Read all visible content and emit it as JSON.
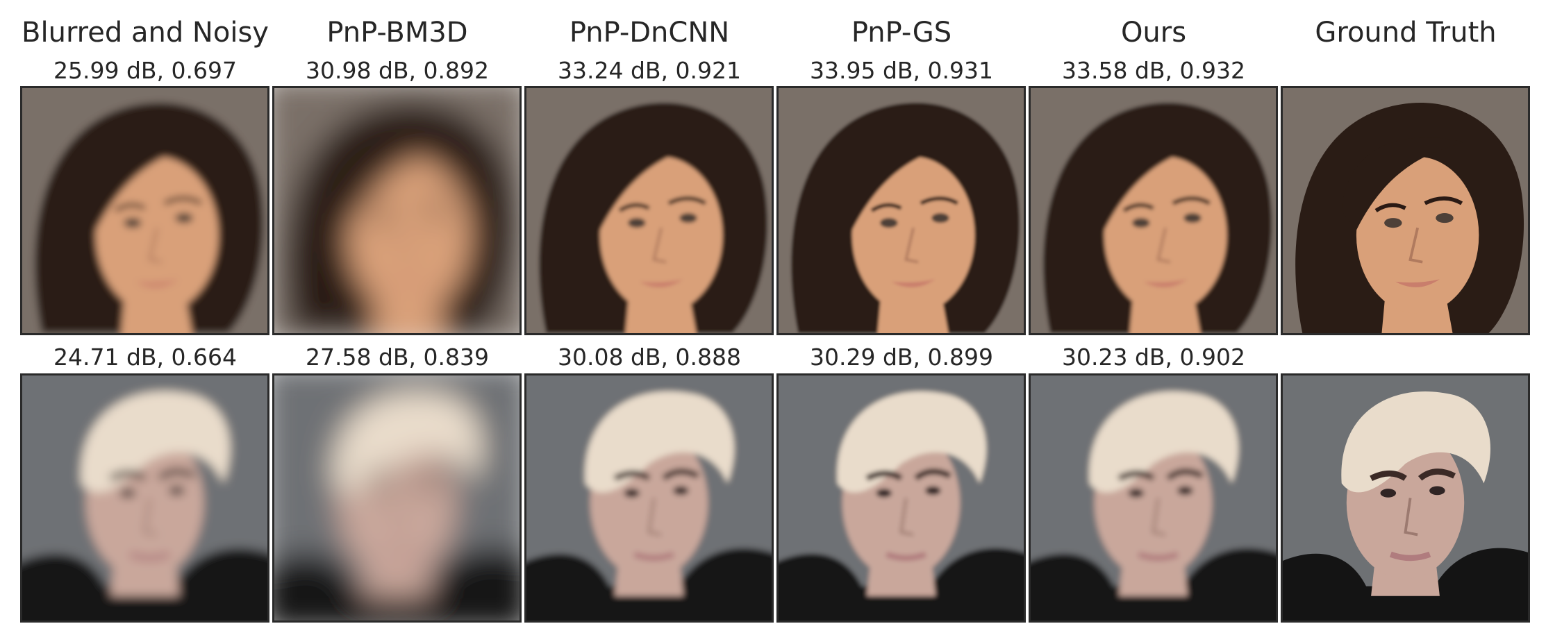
{
  "columns": [
    {
      "title": "Blurred and Noisy"
    },
    {
      "title": "PnP-BM3D"
    },
    {
      "title": "PnP-DnCNN"
    },
    {
      "title": "PnP-GS"
    },
    {
      "title": "Ours"
    },
    {
      "title": "Ground Truth"
    }
  ],
  "rows": [
    {
      "subject": "woman-dark-bob-hair",
      "metrics": [
        "25.99 dB, 0.697",
        "30.98 dB, 0.892",
        "33.24 dB, 0.921",
        "33.95 dB, 0.931",
        "33.58 dB, 0.932",
        ""
      ],
      "colors": {
        "background": "#7a7068",
        "hair": "#2a1c15",
        "skin": "#d9a079",
        "lips": "#c97e6c"
      },
      "blur": [
        1.5,
        6,
        0.8,
        0.6,
        0.8,
        0
      ]
    },
    {
      "subject": "man-platinum-hair",
      "metrics": [
        "24.71 dB, 0.664",
        "27.58 dB, 0.839",
        "30.08 dB, 0.888",
        "30.29 dB, 0.899",
        "30.23 dB, 0.902",
        ""
      ],
      "colors": {
        "background": "#6e7174",
        "hair": "#e9dccb",
        "skin": "#c9a79b",
        "lips": "#b07c7e",
        "shirt": "#141414"
      },
      "blur": [
        2,
        6,
        1.2,
        1,
        1.2,
        0
      ]
    }
  ]
}
